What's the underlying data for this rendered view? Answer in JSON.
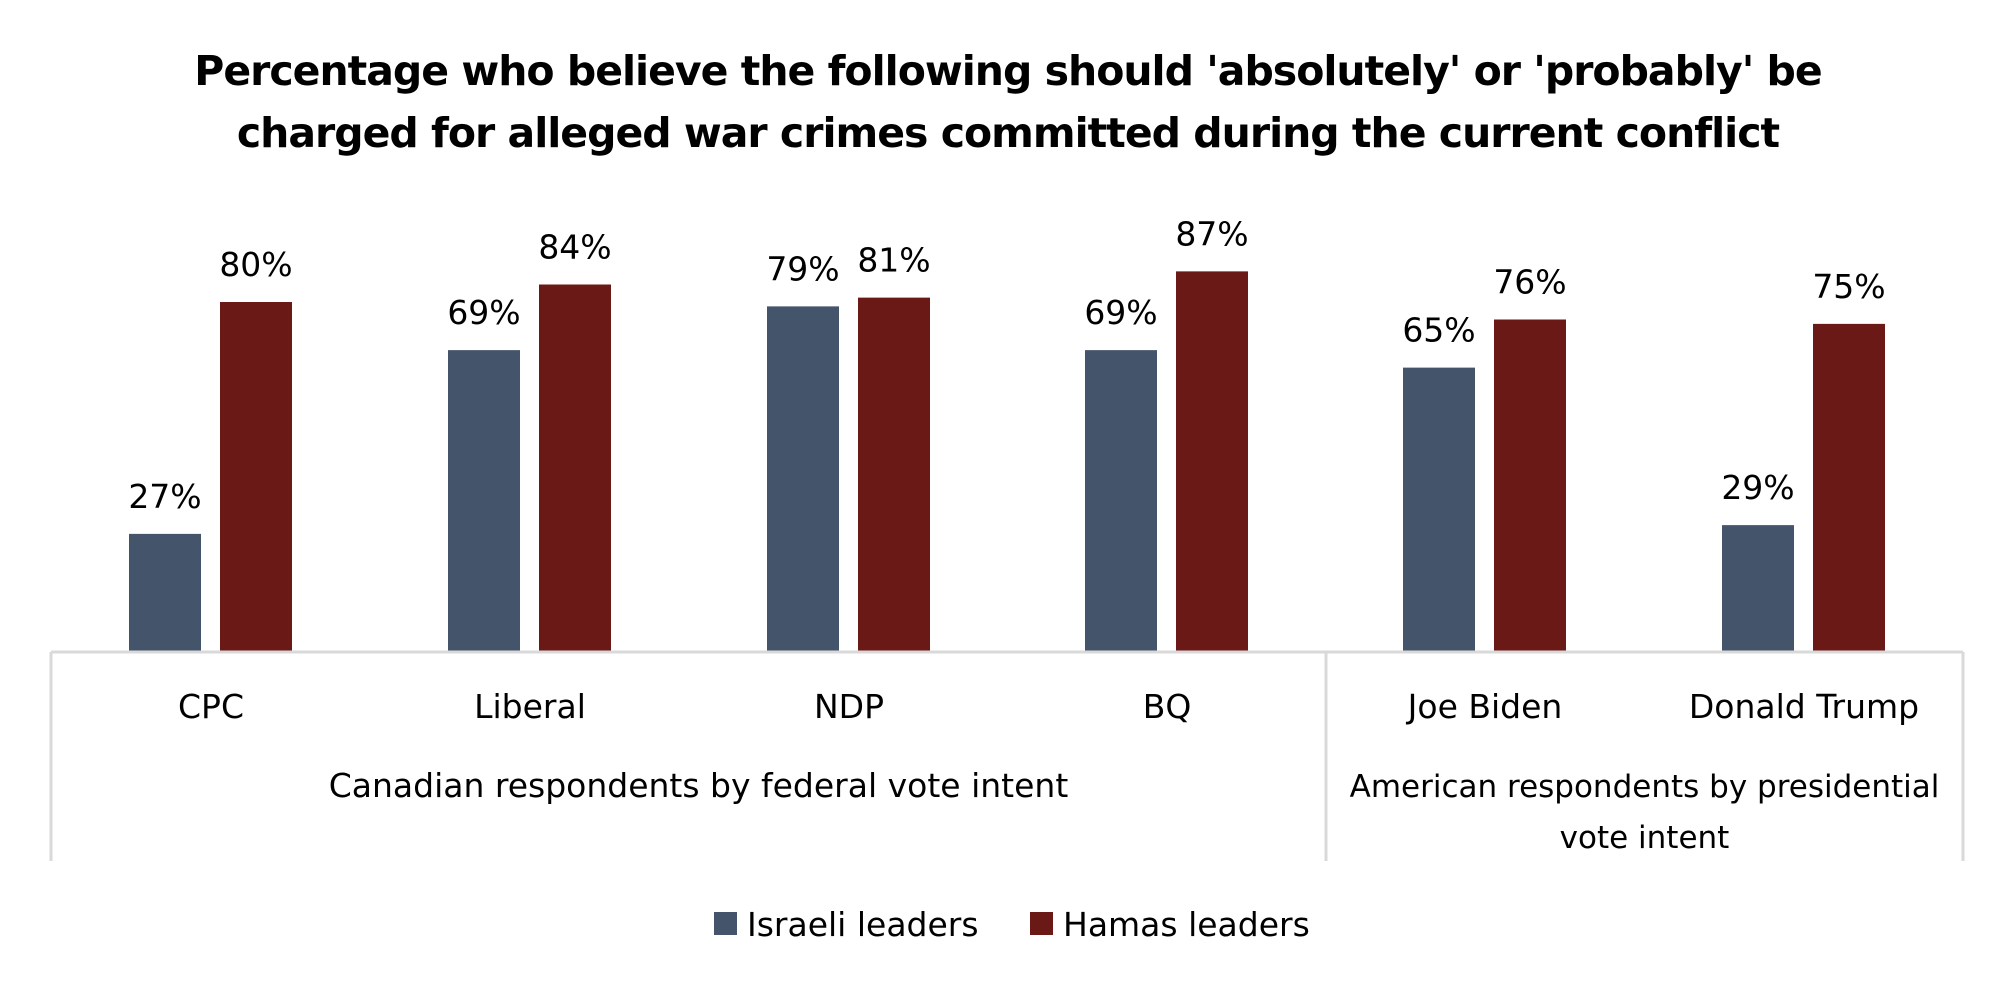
{
  "chart_data": {
    "type": "bar",
    "title_lines": [
      "Percentage who believe the following should 'absolutely' or 'probably' be",
      "charged for alleged war crimes committed during the current conflict"
    ],
    "categories": [
      "CPC",
      "Liberal",
      "NDP",
      "BQ",
      "Joe Biden",
      "Donald Trump"
    ],
    "groups": [
      {
        "label_lines": [
          "Canadian respondents by federal vote intent"
        ],
        "categories": [
          "CPC",
          "Liberal",
          "NDP",
          "BQ"
        ]
      },
      {
        "label_lines": [
          "American respondents by presidential",
          "vote intent"
        ],
        "categories": [
          "Joe Biden",
          "Donald Trump"
        ]
      }
    ],
    "series": [
      {
        "name": "Israeli leaders",
        "color": "#44546A",
        "values": [
          27,
          69,
          79,
          69,
          65,
          29
        ],
        "labels": [
          "27%",
          "69%",
          "79%",
          "69%",
          "65%",
          "29%"
        ]
      },
      {
        "name": "Hamas leaders",
        "color": "#6B1916",
        "values": [
          80,
          84,
          81,
          87,
          76,
          75
        ],
        "labels": [
          "80%",
          "84%",
          "81%",
          "87%",
          "76%",
          "75%"
        ]
      }
    ],
    "ylim": [
      0,
      100
    ],
    "xlabel": "",
    "ylabel": "",
    "grid": false,
    "legend_position": "bottom"
  }
}
